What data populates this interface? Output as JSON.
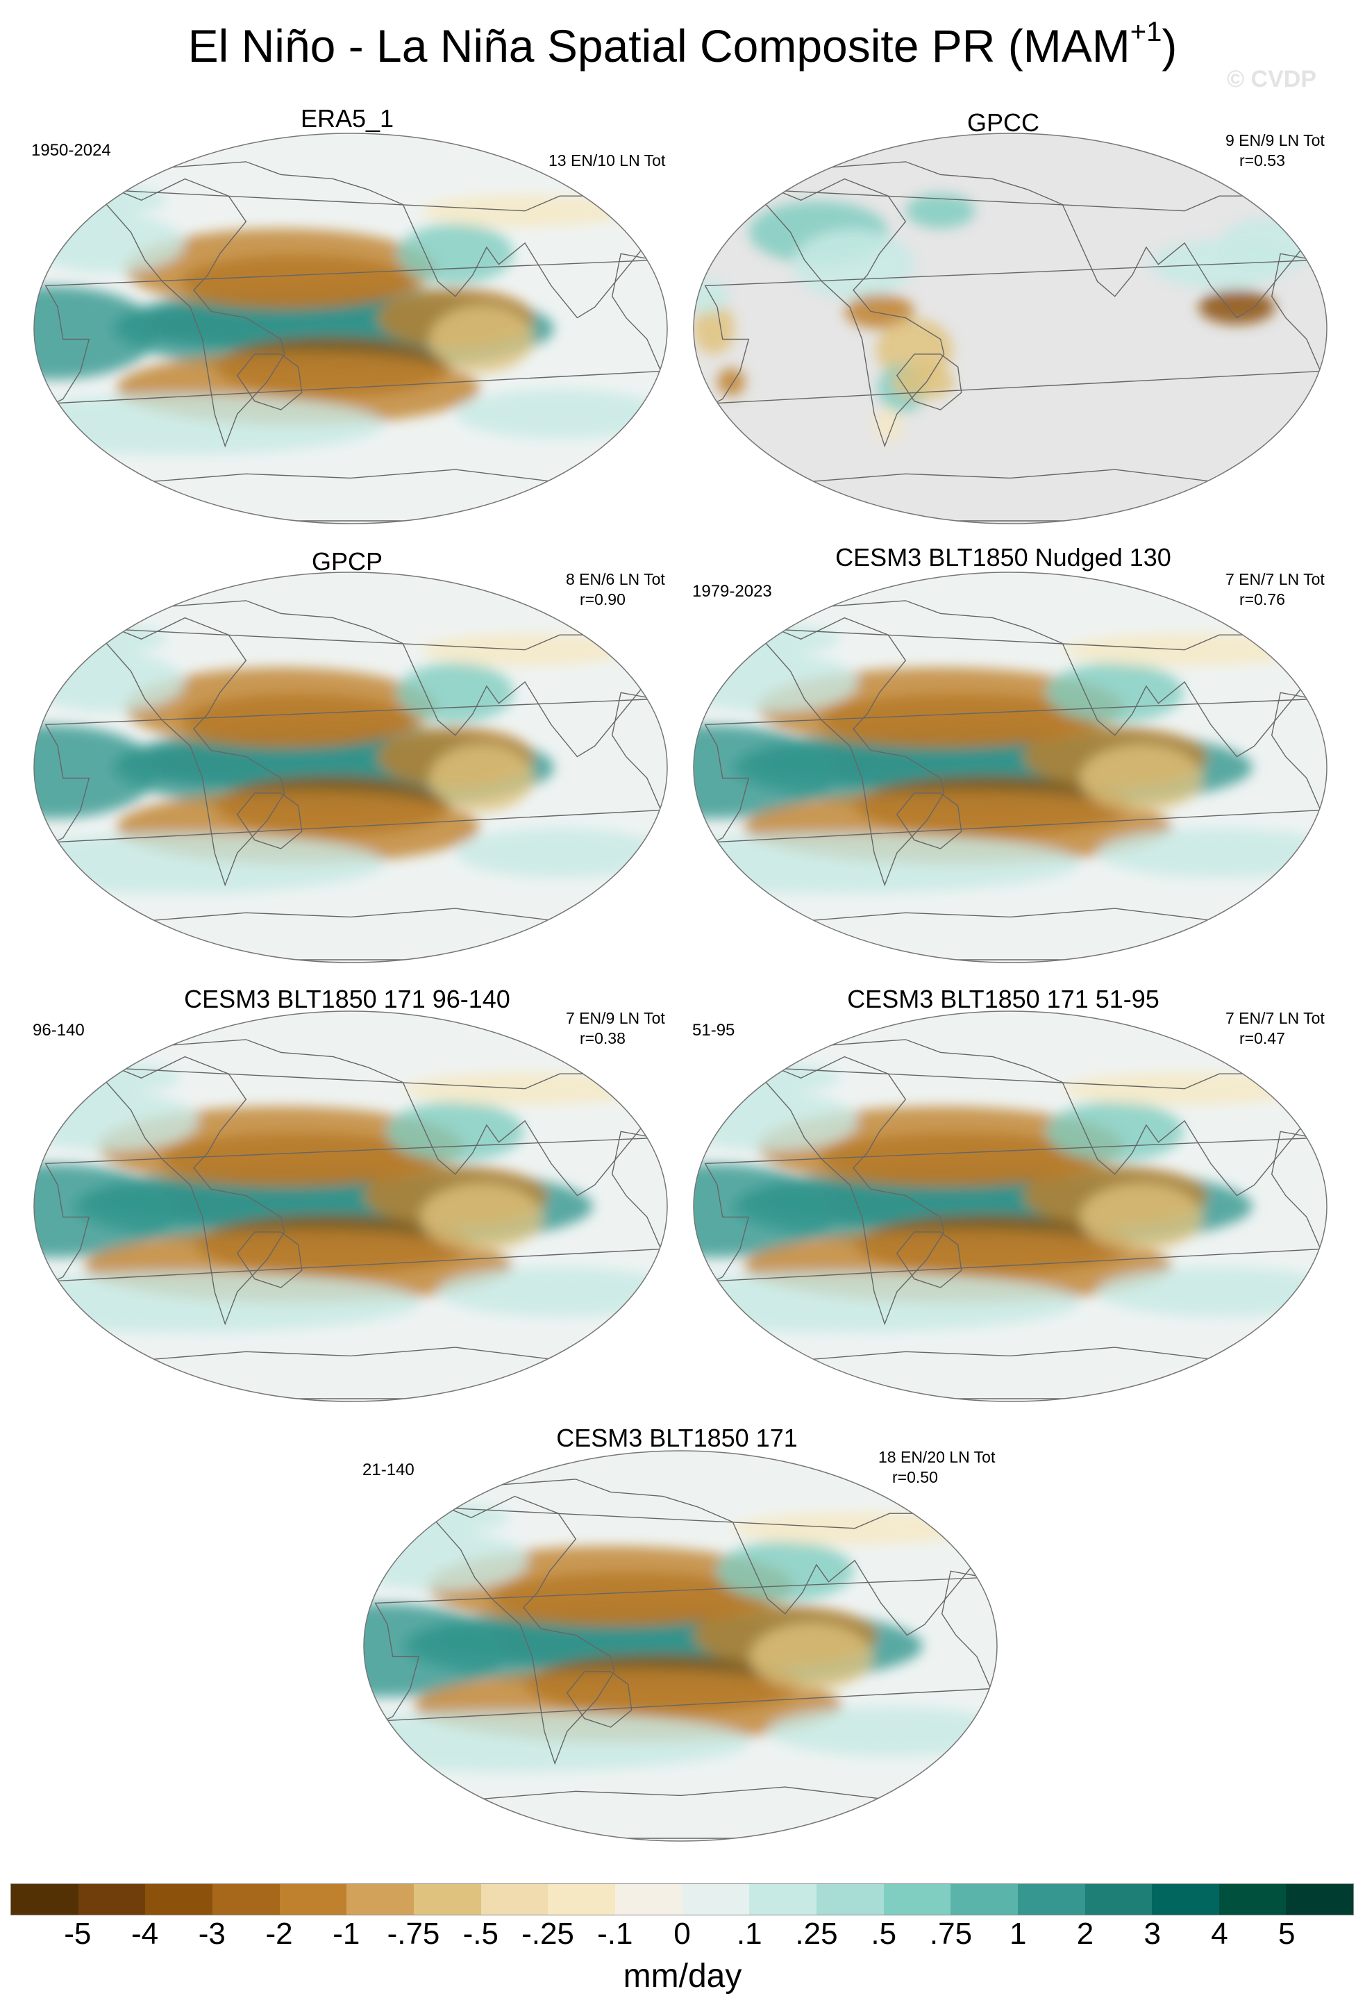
{
  "title": "El Niño - La Niña Spatial Composite PR (MAM",
  "title_sup": "+1",
  "title_close": ")",
  "watermark": "© CVDP",
  "colors": {
    "land_mask": "#e6e6e6",
    "coast": "#666666",
    "ocean_neutral": "#eef3f2"
  },
  "panels": [
    {
      "title": "ERA5_1",
      "left_label": "1950-2024",
      "right_line1": "13 EN/10 LN Tot",
      "right_line2": "",
      "pattern": "reanalysis"
    },
    {
      "title": "GPCC",
      "left_label": "",
      "right_line1": "9 EN/9 LN Tot",
      "right_line2": "r=0.53",
      "pattern": "land-only"
    },
    {
      "title": "GPCP",
      "left_label": "",
      "right_line1": "8 EN/6 LN Tot",
      "right_line2": "r=0.90",
      "pattern": "observed"
    },
    {
      "title": "CESM3 BLT1850 Nudged 130",
      "left_label": "1979-2023",
      "right_line1": "7 EN/7 LN Tot",
      "right_line2": "r=0.76",
      "pattern": "model"
    },
    {
      "title": "CESM3 BLT1850 171 96-140",
      "left_label": "96-140",
      "right_line1": "7 EN/9 LN Tot",
      "right_line2": "r=0.38",
      "pattern": "model"
    },
    {
      "title": "CESM3 BLT1850 171 51-95",
      "left_label": "51-95",
      "right_line1": "7 EN/7 LN Tot",
      "right_line2": "r=0.47",
      "pattern": "model"
    },
    {
      "title": "CESM3 BLT1850 171",
      "left_label": "21-140",
      "right_line1": "18 EN/20 LN Tot",
      "right_line2": "r=0.50",
      "pattern": "model"
    }
  ],
  "colorbar": {
    "units": "mm/day",
    "tick_labels": [
      "-5",
      "-4",
      "-3",
      "-2",
      "-1",
      "-.75",
      "-.5",
      "-.25",
      "-.1",
      "0",
      ".1",
      ".25",
      ".5",
      ".75",
      "1",
      "2",
      "3",
      "4",
      "5"
    ],
    "colors": [
      "#543005",
      "#6f3e0b",
      "#8c510a",
      "#a7681b",
      "#bf812d",
      "#d2a25a",
      "#dfc27d",
      "#f0dcae",
      "#f6e8c3",
      "#f4f0e6",
      "#e6f1ef",
      "#c7eae5",
      "#a8ddd5",
      "#80cdc1",
      "#5ab4a9",
      "#35978f",
      "#1d7f76",
      "#01665e",
      "#00503e",
      "#003c30"
    ]
  }
}
